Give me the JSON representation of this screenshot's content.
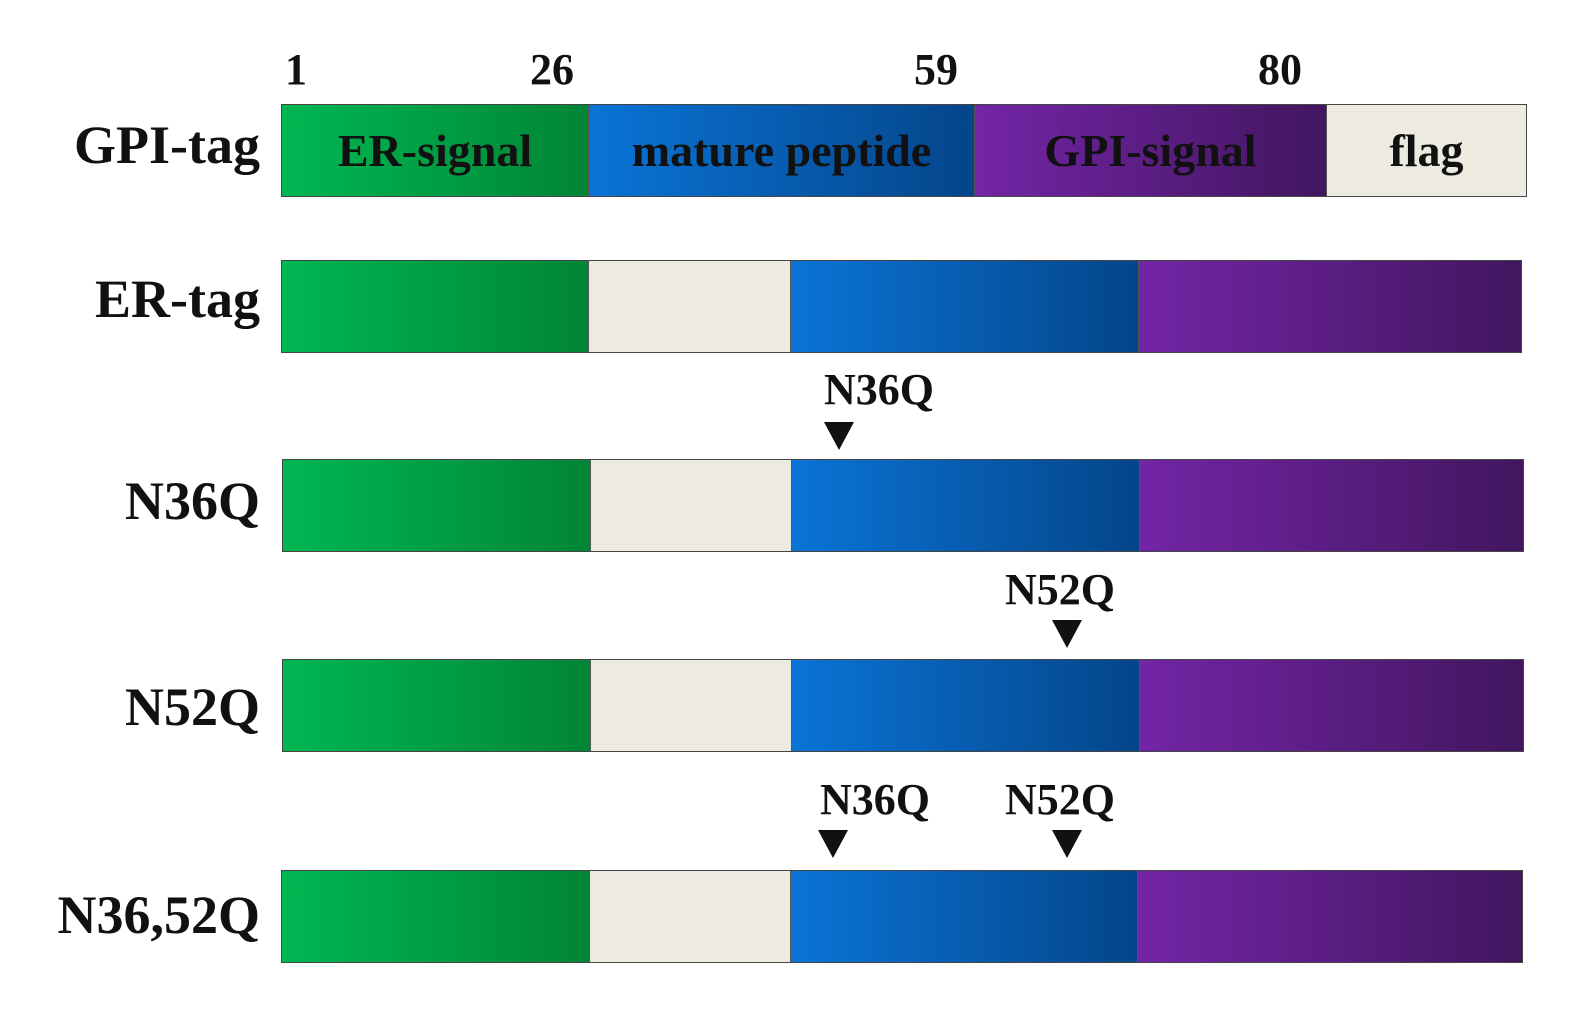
{
  "positions": [
    "1",
    "26",
    "59",
    "80"
  ],
  "segment_labels": {
    "er_signal": "ER-signal",
    "mature_peptide": "mature peptide",
    "gpi_signal": "GPI-signal",
    "flag": "flag"
  },
  "constructs": [
    {
      "label": "GPI-tag",
      "order": [
        "er_signal",
        "mature_peptide",
        "gpi_signal",
        "flag"
      ],
      "mutations": []
    },
    {
      "label": "ER-tag",
      "order": [
        "er_signal",
        "flag",
        "mature_peptide",
        "gpi_signal"
      ],
      "mutations": []
    },
    {
      "label": "N36Q",
      "order": [
        "er_signal",
        "flag",
        "mature_peptide",
        "gpi_signal"
      ],
      "mutations": [
        "N36Q"
      ]
    },
    {
      "label": "N52Q",
      "order": [
        "er_signal",
        "flag",
        "mature_peptide",
        "gpi_signal"
      ],
      "mutations": [
        "N52Q"
      ]
    },
    {
      "label": "N36,52Q",
      "order": [
        "er_signal",
        "flag",
        "mature_peptide",
        "gpi_signal"
      ],
      "mutations": [
        "N36Q",
        "N52Q"
      ]
    }
  ],
  "colors": {
    "er_signal": "#00a044",
    "mature_peptide": "#0860b8",
    "gpi_signal": "#5c1f88",
    "flag": "#edeae0"
  }
}
